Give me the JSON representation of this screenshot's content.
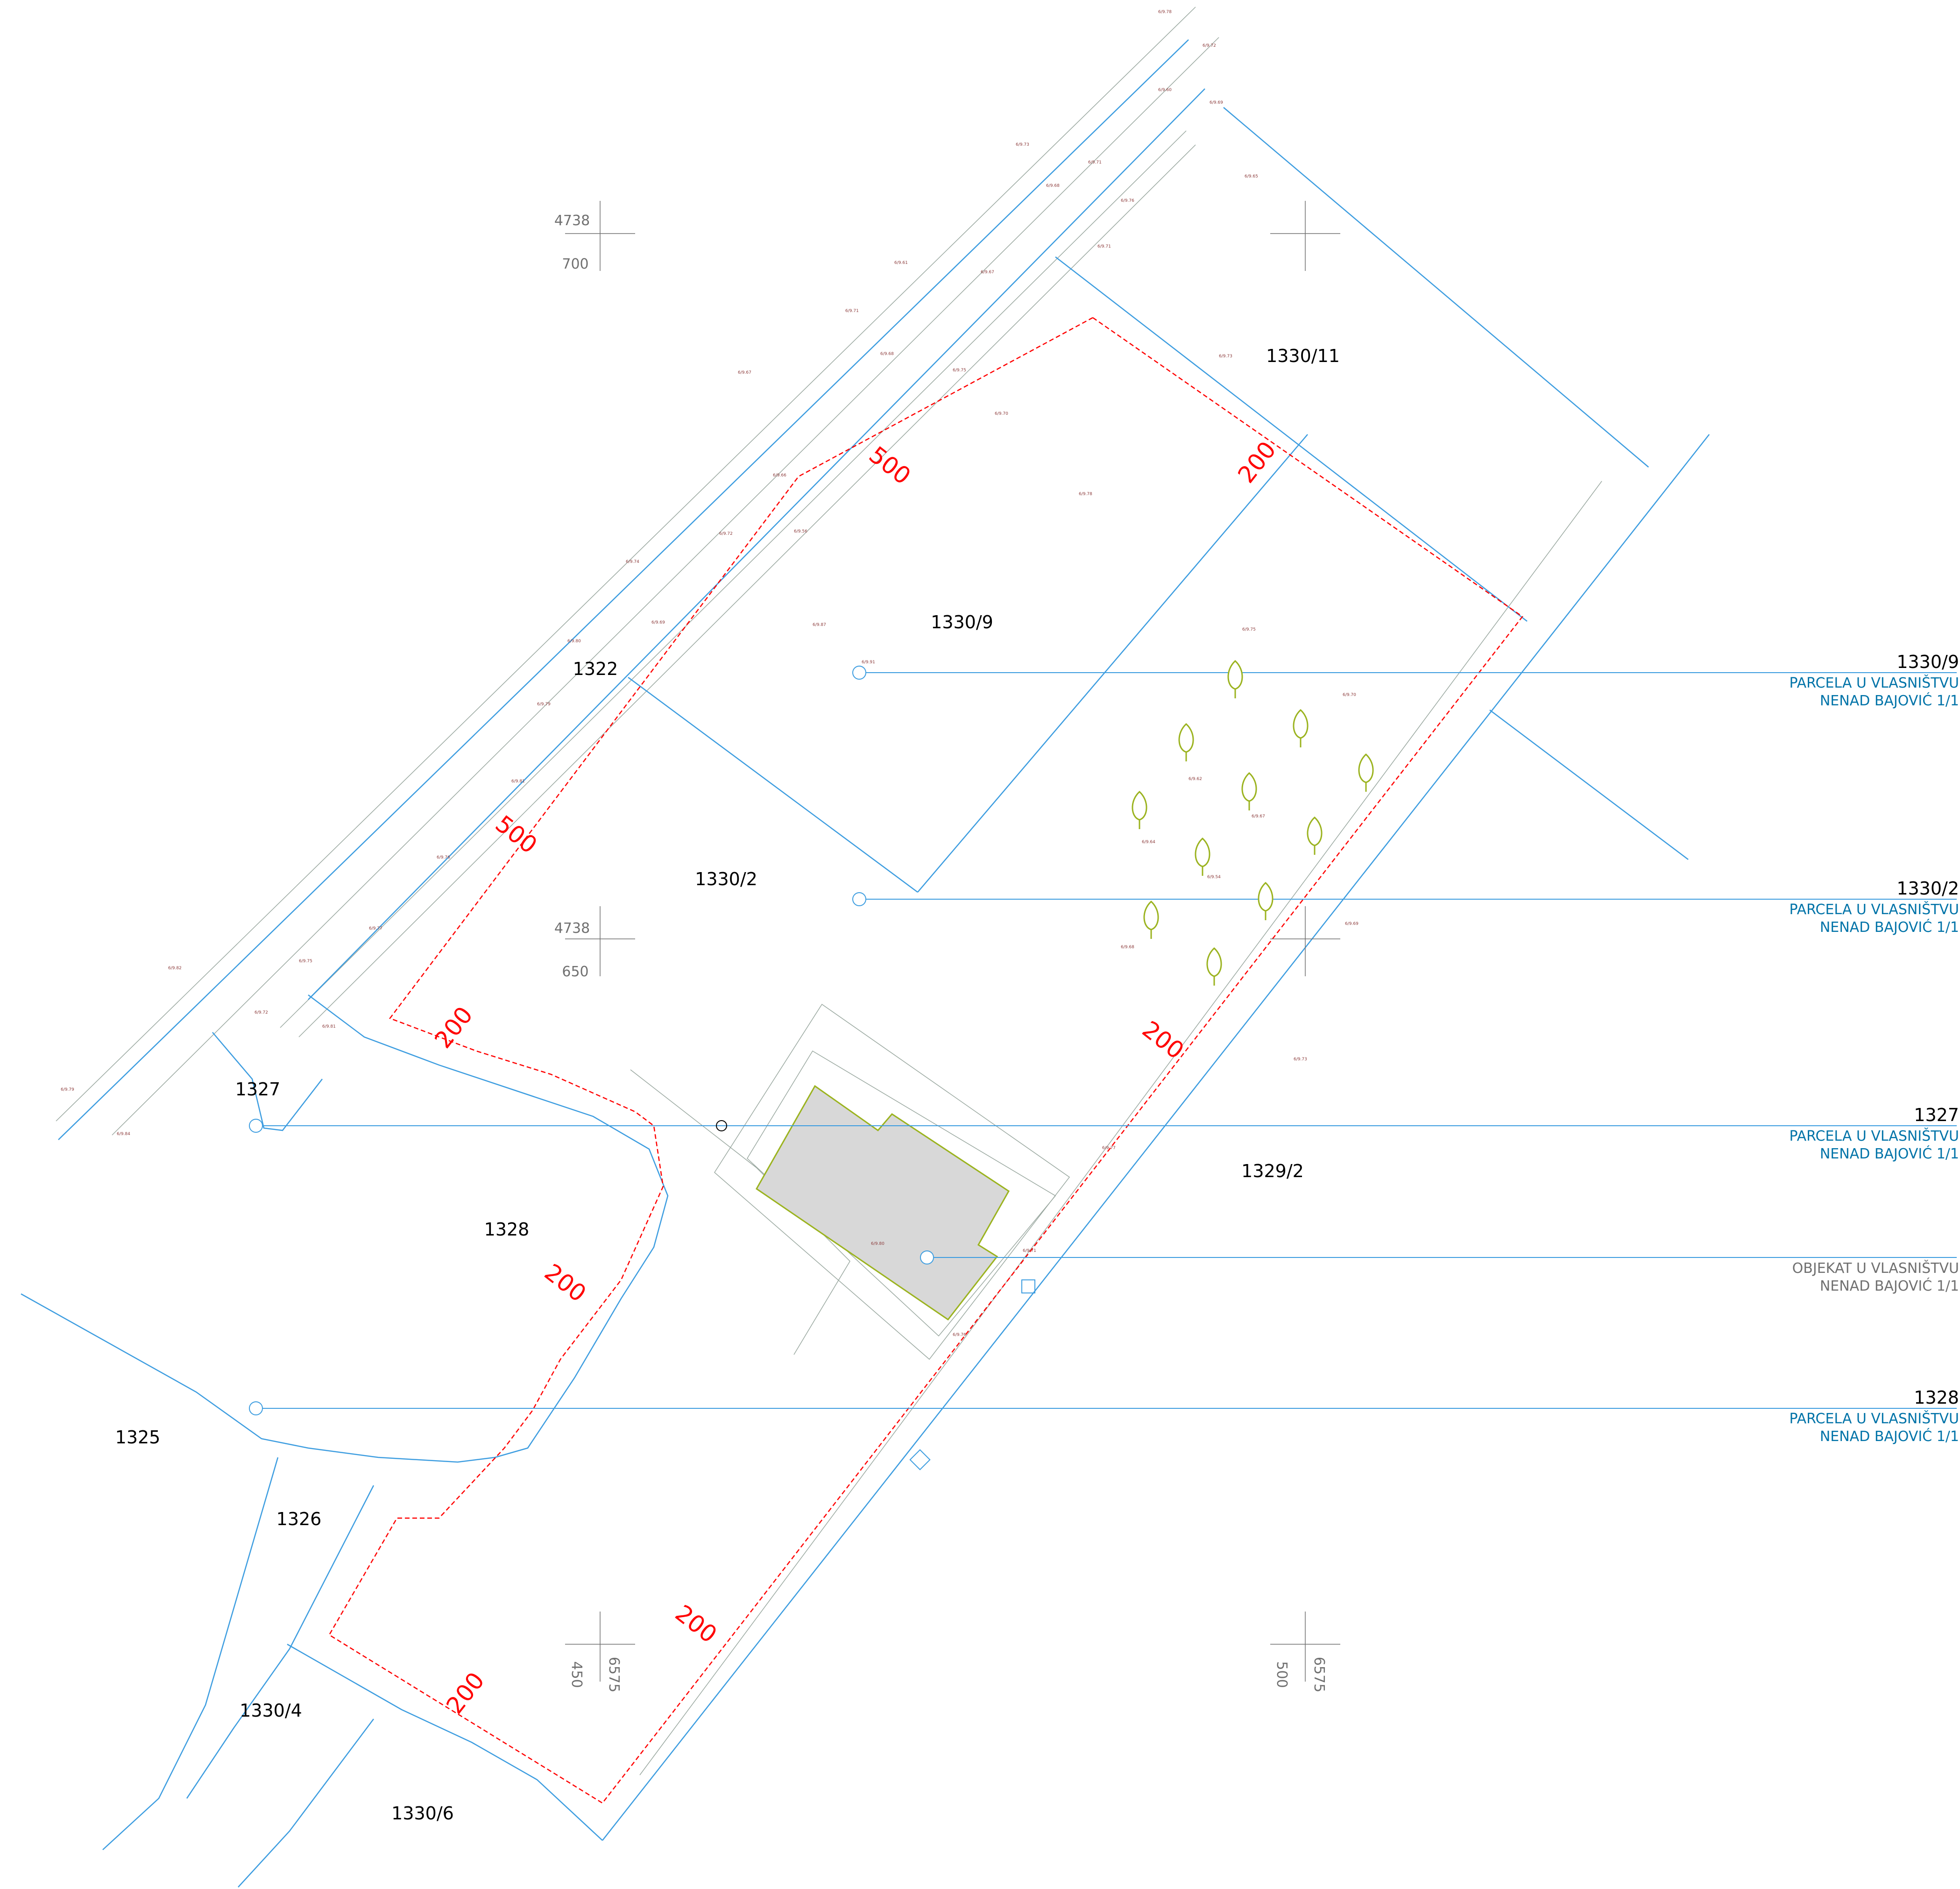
{
  "colors": {
    "boundary": "#3d9de0",
    "setback": "#ff0000",
    "road": "#9aa8a0",
    "building_fill": "#d8d8d8",
    "building_outline": "#9bb31f",
    "legend_parcel": "#0073a8",
    "legend_object": "#707070",
    "tree": "#9bb31f",
    "elevation": "#8b3a3a"
  },
  "parcels": {
    "p1330_11": "1330/11",
    "p1330_9": "1330/9",
    "p1322": "1322",
    "p1330_2": "1330/2",
    "p1327": "1327",
    "p1329_2": "1329/2",
    "p1328": "1328",
    "p1325": "1325",
    "p1326": "1326",
    "p1330_4": "1330/4",
    "p1330_6": "1330/6"
  },
  "setbacks": {
    "top_left": "500",
    "mid_left": "500",
    "top_right": "200",
    "left_upper": "200",
    "right_mid": "200",
    "left_lower": "200",
    "bottom_right": "200",
    "bottom_left": "200"
  },
  "coordinates": {
    "c1_top": "4738",
    "c1_bottom": "700",
    "c2_top": "4738",
    "c2_bottom": "650",
    "c3_left": "450",
    "c3_right": "6575",
    "c4_left": "500",
    "c4_right": "6575"
  },
  "legend": [
    {
      "id": "1330/9",
      "line1": "PARCELA U VLASNIŠTVU",
      "line2": "NENAD BAJOVIĆ 1/1"
    },
    {
      "id": "1330/2",
      "line1": "PARCELA U VLASNIŠTVU",
      "line2": "NENAD BAJOVIĆ 1/1"
    },
    {
      "id": "1327",
      "line1": "PARCELA U VLASNIŠTVU",
      "line2": "NENAD BAJOVIĆ 1/1"
    },
    {
      "id": "",
      "line1": "OBJEKAT U VLASNIŠTVU",
      "line2": "NENAD BAJOVIĆ 1/1"
    },
    {
      "id": "1328",
      "line1": "PARCELA U VLASNIŠTVU",
      "line2": "NENAD BAJOVIĆ 1/1"
    }
  ],
  "trees": [
    "tree",
    "tree",
    "tree",
    "tree",
    "tree",
    "tree",
    "tree",
    "tree",
    "tree",
    "tree",
    "tree",
    "tree"
  ],
  "elevations": [
    "6/9.78",
    "6/9.72",
    "6/9.60",
    "6/9.69",
    "6/9.73",
    "6/9.71",
    "6/9.68",
    "6/9.76",
    "6/9.65",
    "6/9.71",
    "6/9.61",
    "6/9.67",
    "6/9.71",
    "6/9.68",
    "6/9.75",
    "6/9.70",
    "6/9.67",
    "6/9.66",
    "6/9.56",
    "6/9.72",
    "6/9.74",
    "6/9.69",
    "6/9.80",
    "6/9.79",
    "6/9.81",
    "6/9.76",
    "6/9.77",
    "6/9.75",
    "6/9.72",
    "6/9.81",
    "6/9.82",
    "6/9.79",
    "6/9.84",
    "6/9.87",
    "6/9.91",
    "6/9.78",
    "6/9.73",
    "6/9.75",
    "6/9.70",
    "6/9.62",
    "6/9.67",
    "6/9.64",
    "6/9.54",
    "6/9.69",
    "6/9.68",
    "6/9.73",
    "6/9.77",
    "6/9.71",
    "6/9.80",
    "6/9.76"
  ]
}
